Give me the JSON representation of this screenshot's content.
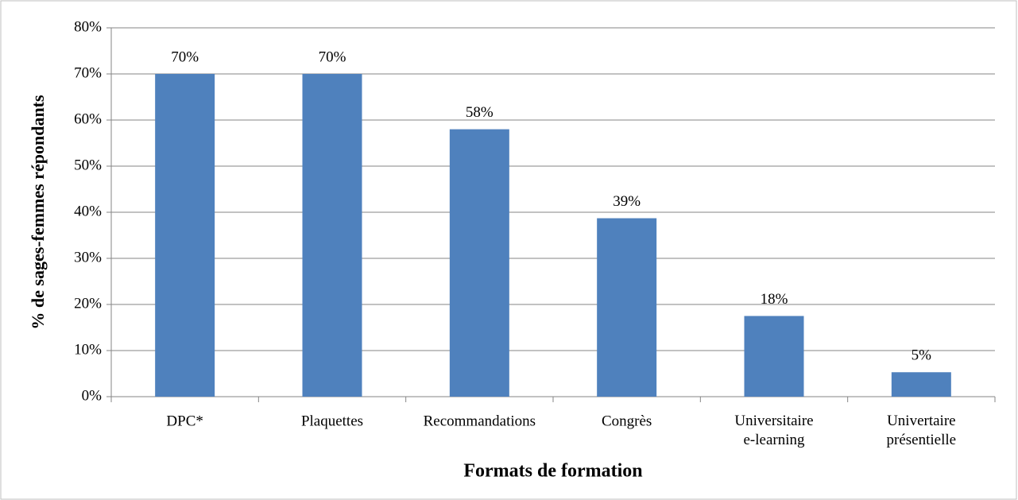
{
  "chart_data": {
    "type": "bar",
    "categories": [
      "DPC*",
      "Plaquettes",
      "Recommandations",
      "Congrès",
      "Universitaire\ne-learning",
      "Univertaire\nprésentielle"
    ],
    "values": [
      70,
      70,
      58,
      38.7,
      17.5,
      5.3
    ],
    "value_labels": [
      "70%",
      "70%",
      "58%",
      "39%",
      "18%",
      "5%"
    ],
    "color": "#4f81bd",
    "ylim": [
      0,
      80
    ],
    "yticks": [
      {
        "value": 0,
        "label": "0%"
      },
      {
        "value": 10,
        "label": "10%"
      },
      {
        "value": 20,
        "label": "20%"
      },
      {
        "value": 30,
        "label": "30%"
      },
      {
        "value": 40,
        "label": "40%"
      },
      {
        "value": 50,
        "label": "50%"
      },
      {
        "value": 60,
        "label": "60%"
      },
      {
        "value": 70,
        "label": "70%"
      },
      {
        "value": 80,
        "label": "80%"
      }
    ],
    "grid": true,
    "y_label": "% de sages-femmes répondants",
    "x_label": "Formats de formation"
  }
}
